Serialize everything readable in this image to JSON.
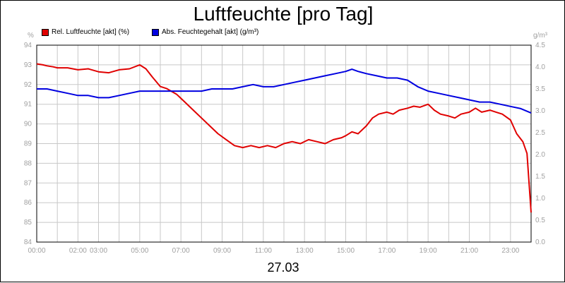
{
  "chart_data": {
    "type": "line",
    "title": "Luftfeuchte [pro Tag]",
    "subtitle": "27.03",
    "left_unit": "%",
    "right_unit": "g/m³",
    "x_ticks": [
      "00:00",
      "02:00",
      "03:00",
      "05:00",
      "07:00",
      "09:00",
      "11:00",
      "13:00",
      "15:00",
      "17:00",
      "19:00",
      "21:00",
      "23:00"
    ],
    "x_tick_hours": [
      0,
      2,
      3,
      5,
      7,
      9,
      11,
      13,
      15,
      17,
      19,
      21,
      23
    ],
    "xlim": [
      0,
      24
    ],
    "ylim_left": [
      84,
      94
    ],
    "ylim_right": [
      0.0,
      4.5
    ],
    "y_ticks_left": [
      "84",
      "85",
      "86",
      "87",
      "88",
      "89",
      "90",
      "91",
      "92",
      "93",
      "94"
    ],
    "y_ticks_right": [
      "0.0",
      "0.5",
      "1.0",
      "1.5",
      "2.0",
      "2.5",
      "3.0",
      "3.5",
      "4.0",
      "4.5"
    ],
    "grid": true,
    "series": [
      {
        "name": "Rel. Luftfeuchte [akt] (%)",
        "axis": "left",
        "color": "#e00000",
        "x": [
          0.0,
          0.3,
          0.5,
          0.8,
          1.0,
          1.5,
          2.0,
          2.5,
          3.0,
          3.5,
          4.0,
          4.5,
          5.0,
          5.3,
          5.6,
          6.0,
          6.3,
          6.8,
          7.2,
          7.6,
          8.0,
          8.4,
          8.8,
          9.2,
          9.6,
          10.0,
          10.4,
          10.8,
          11.2,
          11.6,
          12.0,
          12.4,
          12.8,
          13.2,
          13.6,
          14.0,
          14.4,
          14.8,
          15.0,
          15.3,
          15.6,
          16.0,
          16.3,
          16.6,
          17.0,
          17.3,
          17.6,
          18.0,
          18.3,
          18.6,
          19.0,
          19.3,
          19.6,
          20.0,
          20.3,
          20.6,
          21.0,
          21.3,
          21.6,
          22.0,
          22.3,
          22.6,
          23.0,
          23.3,
          23.6,
          23.8,
          24.0
        ],
        "values": [
          93.05,
          93.0,
          92.95,
          92.9,
          92.85,
          92.85,
          92.75,
          92.8,
          92.65,
          92.6,
          92.75,
          92.8,
          93.0,
          92.8,
          92.4,
          91.9,
          91.8,
          91.5,
          91.1,
          90.7,
          90.3,
          89.9,
          89.5,
          89.2,
          88.9,
          88.8,
          88.9,
          88.8,
          88.9,
          88.8,
          89.0,
          89.1,
          89.0,
          89.2,
          89.1,
          89.0,
          89.2,
          89.3,
          89.4,
          89.6,
          89.5,
          89.9,
          90.3,
          90.5,
          90.6,
          90.5,
          90.7,
          90.8,
          90.9,
          90.85,
          91.0,
          90.7,
          90.5,
          90.4,
          90.3,
          90.5,
          90.6,
          90.8,
          90.6,
          90.7,
          90.6,
          90.5,
          90.2,
          89.5,
          89.1,
          88.5,
          85.5
        ]
      },
      {
        "name": "Abs. Feuchtegehalt [akt] (g/m³)",
        "axis": "right",
        "color": "#0000e0",
        "x": [
          0.0,
          0.5,
          1.0,
          1.5,
          2.0,
          2.5,
          3.0,
          3.5,
          4.0,
          4.5,
          5.0,
          5.5,
          6.0,
          6.5,
          7.0,
          7.5,
          8.0,
          8.5,
          9.0,
          9.5,
          10.0,
          10.5,
          11.0,
          11.5,
          12.0,
          12.5,
          13.0,
          13.5,
          14.0,
          14.5,
          15.0,
          15.3,
          15.6,
          16.0,
          16.5,
          17.0,
          17.5,
          18.0,
          18.5,
          19.0,
          19.5,
          20.0,
          20.5,
          21.0,
          21.5,
          22.0,
          22.5,
          23.0,
          23.5,
          24.0
        ],
        "values": [
          3.5,
          3.5,
          3.45,
          3.4,
          3.35,
          3.35,
          3.3,
          3.3,
          3.35,
          3.4,
          3.45,
          3.45,
          3.45,
          3.45,
          3.45,
          3.45,
          3.45,
          3.5,
          3.5,
          3.5,
          3.55,
          3.6,
          3.55,
          3.55,
          3.6,
          3.65,
          3.7,
          3.75,
          3.8,
          3.85,
          3.9,
          3.95,
          3.9,
          3.85,
          3.8,
          3.75,
          3.75,
          3.7,
          3.55,
          3.45,
          3.4,
          3.35,
          3.3,
          3.25,
          3.2,
          3.2,
          3.15,
          3.1,
          3.05,
          2.95
        ]
      }
    ]
  }
}
